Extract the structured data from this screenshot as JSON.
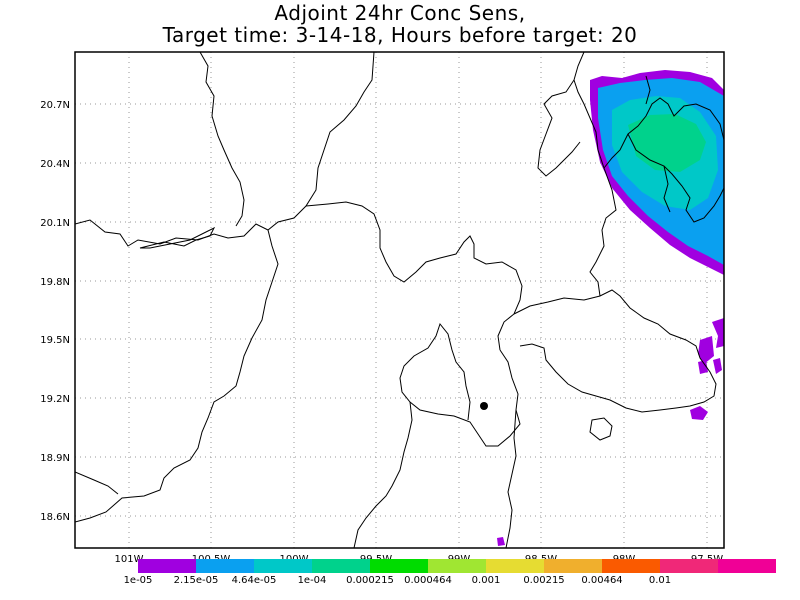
{
  "title": {
    "line1": "Adjoint 24hr Conc Sens,",
    "line2": "Target time: 3-14-18, Hours before target: 20"
  },
  "map": {
    "lat_labels": [
      "20.7N",
      "20.4N",
      "20.1N",
      "19.8N",
      "19.5N",
      "19.2N",
      "18.9N",
      "18.6N"
    ],
    "lon_labels": [
      "101W",
      "100.5W",
      "100W",
      "99.5W",
      "99W",
      "98.5W",
      "98W",
      "97.5W"
    ],
    "grid": "dotted",
    "marker_color": "#000000"
  },
  "colorbar": {
    "colors": [
      "#a000e0",
      "#0aa0f0",
      "#00c8c8",
      "#00d28c",
      "#00dc00",
      "#a0e632",
      "#e6dc32",
      "#f0af2d",
      "#fa5a00",
      "#f02878",
      "#f00096"
    ],
    "labels": [
      "1e-05",
      "2.15e-05",
      "4.64e-05",
      "1e-04",
      "0.000215",
      "0.000464",
      "0.001",
      "0.00215",
      "0.00464",
      "0.01"
    ]
  }
}
